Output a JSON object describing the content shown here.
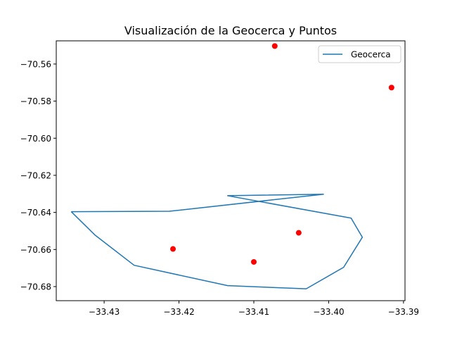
{
  "chart_data": {
    "type": "line",
    "title": "Visualización de la Geocerca y Puntos",
    "xlabel": "",
    "ylabel": "",
    "xlim": [
      -33.4364,
      -33.3898
    ],
    "ylim": [
      -70.6876,
      -70.5475
    ],
    "x_ticks": [
      -33.43,
      -33.42,
      -33.41,
      -33.4,
      -33.39
    ],
    "x_tick_labels": [
      "−33.43",
      "−33.42",
      "−33.41",
      "−33.40",
      "−33.39"
    ],
    "y_ticks": [
      -70.56,
      -70.58,
      -70.6,
      -70.62,
      -70.64,
      -70.66,
      -70.68
    ],
    "y_tick_labels": [
      "−70.56",
      "−70.58",
      "−70.60",
      "−70.62",
      "−70.64",
      "−70.66",
      "−70.68"
    ],
    "grid": false,
    "legend_position": "top-right",
    "series": [
      {
        "name": "Geocerca",
        "kind": "line",
        "color": "#1f77b4",
        "points": [
          [
            -33.4344,
            -70.6396
          ],
          [
            -33.4213,
            -70.6394
          ],
          [
            -33.4007,
            -70.6302
          ],
          [
            -33.4135,
            -70.631
          ],
          [
            -33.397,
            -70.6431
          ],
          [
            -33.3955,
            -70.6534
          ],
          [
            -33.398,
            -70.6696
          ],
          [
            -33.403,
            -70.6812
          ],
          [
            -33.4135,
            -70.6795
          ],
          [
            -33.426,
            -70.6685
          ],
          [
            -33.4312,
            -70.6523
          ],
          [
            -33.4344,
            -70.6396
          ]
        ]
      },
      {
        "name": "",
        "kind": "scatter",
        "color": "#ff0000",
        "points": [
          [
            -33.4072,
            -70.5503
          ],
          [
            -33.3916,
            -70.5727
          ],
          [
            -33.404,
            -70.651
          ],
          [
            -33.4208,
            -70.6597
          ],
          [
            -33.41,
            -70.6667
          ]
        ]
      }
    ]
  }
}
